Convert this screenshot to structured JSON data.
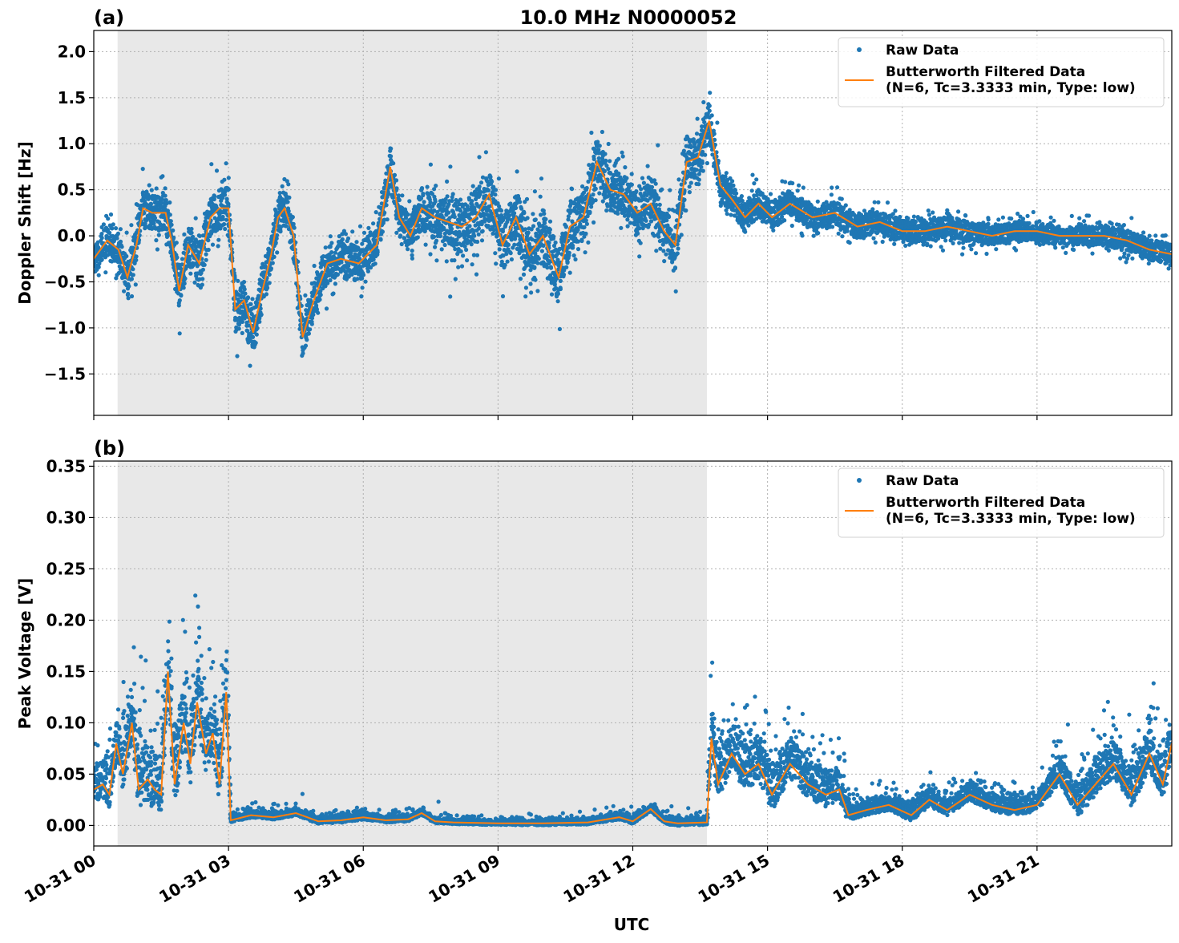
{
  "figure": {
    "title": "10.0 MHz N0000052",
    "xlabel": "UTC"
  },
  "chart_data": [
    {
      "type": "scatter",
      "panel_label": "(a)",
      "ylabel": "Doppler Shift [Hz]",
      "xlim": [
        0,
        24
      ],
      "ylim": [
        -1.95,
        2.23
      ],
      "x_ticks": [
        0,
        3,
        6,
        9,
        12,
        15,
        18,
        21
      ],
      "x_tick_labels": [
        "10-31 00",
        "10-31 03",
        "10-31 06",
        "10-31 09",
        "10-31 12",
        "10-31 15",
        "10-31 18",
        "10-31 21"
      ],
      "y_ticks": [
        -1.5,
        -1.0,
        -0.5,
        0.0,
        0.5,
        1.0,
        1.5,
        2.0
      ],
      "y_tick_labels": [
        "−1.5",
        "−1.0",
        "−0.5",
        "0.0",
        "0.5",
        "1.0",
        "1.5",
        "2.0"
      ],
      "grid": true,
      "legend_position": "top-right",
      "shaded_x_range": [
        0.53,
        13.65
      ],
      "series": [
        {
          "name": "Raw Data",
          "kind": "points",
          "color": "#1f77b4",
          "spread": [
            [
              0,
              0.25
            ],
            [
              1,
              0.3
            ],
            [
              2,
              0.3
            ],
            [
              3,
              0.35
            ],
            [
              4,
              0.3
            ],
            [
              5,
              0.3
            ],
            [
              6,
              0.3
            ],
            [
              7,
              0.3
            ],
            [
              8,
              0.45
            ],
            [
              9,
              0.45
            ],
            [
              10,
              0.45
            ],
            [
              11,
              0.4
            ],
            [
              12,
              0.35
            ],
            [
              13,
              0.4
            ],
            [
              13.65,
              0.35
            ],
            [
              14,
              0.25
            ],
            [
              16,
              0.2
            ],
            [
              18,
              0.18
            ],
            [
              21,
              0.15
            ],
            [
              24,
              0.18
            ]
          ]
        },
        {
          "name": "Butterworth Filtered Data\n(N=6, Tc=3.3333 min, Type: low)",
          "kind": "line",
          "color": "#ff7f0e",
          "points": [
            [
              0,
              -0.25
            ],
            [
              0.3,
              -0.05
            ],
            [
              0.55,
              -0.15
            ],
            [
              0.75,
              -0.45
            ],
            [
              0.95,
              -0.1
            ],
            [
              1.1,
              0.3
            ],
            [
              1.3,
              0.25
            ],
            [
              1.6,
              0.25
            ],
            [
              1.75,
              -0.1
            ],
            [
              1.9,
              -0.6
            ],
            [
              2.1,
              -0.1
            ],
            [
              2.35,
              -0.3
            ],
            [
              2.6,
              0.2
            ],
            [
              2.8,
              0.3
            ],
            [
              3.0,
              0.3
            ],
            [
              3.15,
              -0.8
            ],
            [
              3.35,
              -0.7
            ],
            [
              3.55,
              -1.05
            ],
            [
              3.75,
              -0.6
            ],
            [
              3.95,
              -0.2
            ],
            [
              4.1,
              0.2
            ],
            [
              4.25,
              0.3
            ],
            [
              4.45,
              0.0
            ],
            [
              4.65,
              -1.1
            ],
            [
              4.9,
              -0.7
            ],
            [
              5.2,
              -0.3
            ],
            [
              5.5,
              -0.25
            ],
            [
              5.9,
              -0.3
            ],
            [
              6.3,
              -0.1
            ],
            [
              6.6,
              0.75
            ],
            [
              6.8,
              0.2
            ],
            [
              7.05,
              0.0
            ],
            [
              7.3,
              0.3
            ],
            [
              7.6,
              0.2
            ],
            [
              7.9,
              0.15
            ],
            [
              8.2,
              0.1
            ],
            [
              8.5,
              0.2
            ],
            [
              8.8,
              0.45
            ],
            [
              9.1,
              -0.1
            ],
            [
              9.4,
              0.2
            ],
            [
              9.7,
              -0.2
            ],
            [
              10.0,
              0.0
            ],
            [
              10.35,
              -0.45
            ],
            [
              10.6,
              0.1
            ],
            [
              10.9,
              0.2
            ],
            [
              11.2,
              0.8
            ],
            [
              11.5,
              0.5
            ],
            [
              11.8,
              0.45
            ],
            [
              12.1,
              0.25
            ],
            [
              12.4,
              0.35
            ],
            [
              12.7,
              0.05
            ],
            [
              12.95,
              -0.1
            ],
            [
              13.2,
              0.8
            ],
            [
              13.45,
              0.85
            ],
            [
              13.7,
              1.25
            ],
            [
              13.95,
              0.55
            ],
            [
              14.2,
              0.4
            ],
            [
              14.5,
              0.2
            ],
            [
              14.8,
              0.35
            ],
            [
              15.1,
              0.2
            ],
            [
              15.5,
              0.35
            ],
            [
              16.0,
              0.2
            ],
            [
              16.5,
              0.25
            ],
            [
              17.0,
              0.1
            ],
            [
              17.5,
              0.15
            ],
            [
              18.0,
              0.05
            ],
            [
              18.5,
              0.05
            ],
            [
              19.0,
              0.1
            ],
            [
              19.5,
              0.05
            ],
            [
              20.0,
              0.0
            ],
            [
              20.5,
              0.05
            ],
            [
              21.0,
              0.05
            ],
            [
              21.5,
              0.0
            ],
            [
              22.0,
              0.0
            ],
            [
              22.5,
              0.0
            ],
            [
              23.0,
              -0.05
            ],
            [
              23.5,
              -0.15
            ],
            [
              24.0,
              -0.2
            ]
          ]
        }
      ]
    },
    {
      "type": "scatter",
      "panel_label": "(b)",
      "ylabel": "Peak Voltage [V]",
      "xlim": [
        0,
        24
      ],
      "ylim": [
        -0.02,
        0.355
      ],
      "x_ticks": [
        0,
        3,
        6,
        9,
        12,
        15,
        18,
        21
      ],
      "x_tick_labels": [
        "10-31 00",
        "10-31 03",
        "10-31 06",
        "10-31 09",
        "10-31 12",
        "10-31 15",
        "10-31 18",
        "10-31 21"
      ],
      "y_ticks": [
        0.0,
        0.05,
        0.1,
        0.15,
        0.2,
        0.25,
        0.3,
        0.35
      ],
      "y_tick_labels": [
        "0.00",
        "0.05",
        "0.10",
        "0.15",
        "0.20",
        "0.25",
        "0.30",
        "0.35"
      ],
      "grid": true,
      "legend_position": "top-right",
      "shaded_x_range": [
        0.53,
        13.65
      ],
      "series": [
        {
          "name": "Raw Data",
          "kind": "points",
          "color": "#1f77b4",
          "spread": [
            [
              0,
              0.03
            ],
            [
              1,
              0.05
            ],
            [
              2,
              0.06
            ],
            [
              3,
              0.05
            ],
            [
              3.05,
              0.006
            ],
            [
              6,
              0.006
            ],
            [
              9,
              0.004
            ],
            [
              12,
              0.006
            ],
            [
              13.65,
              0.006
            ],
            [
              13.7,
              0.04
            ],
            [
              15,
              0.04
            ],
            [
              16.5,
              0.03
            ],
            [
              17,
              0.012
            ],
            [
              18,
              0.015
            ],
            [
              21,
              0.015
            ],
            [
              22,
              0.03
            ],
            [
              24,
              0.04
            ]
          ]
        },
        {
          "name": "Butterworth Filtered Data\n(N=6, Tc=3.3333 min, Type: low)",
          "kind": "line",
          "color": "#ff7f0e",
          "points": [
            [
              0,
              0.035
            ],
            [
              0.2,
              0.04
            ],
            [
              0.35,
              0.03
            ],
            [
              0.5,
              0.08
            ],
            [
              0.65,
              0.05
            ],
            [
              0.85,
              0.1
            ],
            [
              1.0,
              0.035
            ],
            [
              1.2,
              0.045
            ],
            [
              1.35,
              0.035
            ],
            [
              1.5,
              0.03
            ],
            [
              1.65,
              0.15
            ],
            [
              1.8,
              0.04
            ],
            [
              2.0,
              0.1
            ],
            [
              2.15,
              0.06
            ],
            [
              2.3,
              0.12
            ],
            [
              2.5,
              0.07
            ],
            [
              2.65,
              0.09
            ],
            [
              2.8,
              0.04
            ],
            [
              2.95,
              0.13
            ],
            [
              3.05,
              0.005
            ],
            [
              3.5,
              0.01
            ],
            [
              4.0,
              0.008
            ],
            [
              4.5,
              0.012
            ],
            [
              5.0,
              0.004
            ],
            [
              5.5,
              0.005
            ],
            [
              6.0,
              0.008
            ],
            [
              6.5,
              0.005
            ],
            [
              7.0,
              0.006
            ],
            [
              7.3,
              0.012
            ],
            [
              7.6,
              0.004
            ],
            [
              8.0,
              0.003
            ],
            [
              9.0,
              0.002
            ],
            [
              10.0,
              0.002
            ],
            [
              11.0,
              0.003
            ],
            [
              11.7,
              0.008
            ],
            [
              12.0,
              0.004
            ],
            [
              12.4,
              0.016
            ],
            [
              12.7,
              0.004
            ],
            [
              13.0,
              0.002
            ],
            [
              13.65,
              0.003
            ],
            [
              13.75,
              0.085
            ],
            [
              13.9,
              0.04
            ],
            [
              14.2,
              0.07
            ],
            [
              14.5,
              0.05
            ],
            [
              14.8,
              0.06
            ],
            [
              15.1,
              0.03
            ],
            [
              15.5,
              0.06
            ],
            [
              15.9,
              0.04
            ],
            [
              16.3,
              0.03
            ],
            [
              16.6,
              0.035
            ],
            [
              16.8,
              0.01
            ],
            [
              17.2,
              0.015
            ],
            [
              17.7,
              0.02
            ],
            [
              18.2,
              0.01
            ],
            [
              18.6,
              0.025
            ],
            [
              19.0,
              0.015
            ],
            [
              19.5,
              0.03
            ],
            [
              20.0,
              0.02
            ],
            [
              20.5,
              0.015
            ],
            [
              21.0,
              0.02
            ],
            [
              21.5,
              0.05
            ],
            [
              21.9,
              0.02
            ],
            [
              22.3,
              0.04
            ],
            [
              22.7,
              0.06
            ],
            [
              23.1,
              0.03
            ],
            [
              23.5,
              0.07
            ],
            [
              23.8,
              0.04
            ],
            [
              24.0,
              0.08
            ]
          ]
        }
      ]
    }
  ]
}
